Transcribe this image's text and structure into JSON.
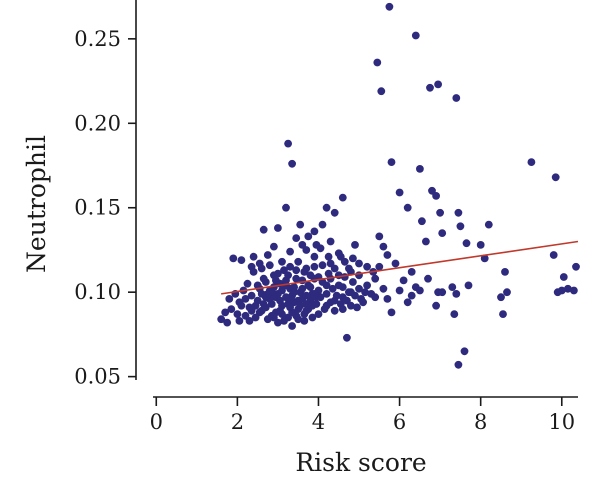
{
  "chart_data": {
    "type": "scatter",
    "title": "",
    "xlabel": "Risk score",
    "ylabel": "Neutrophil",
    "xlim": [
      -0.5,
      10.4
    ],
    "ylim": [
      0.048,
      0.273
    ],
    "x_ticks": [
      0,
      2,
      4,
      6,
      8,
      10
    ],
    "x_tick_labels": [
      "0",
      "2",
      "4",
      "6",
      "8",
      "10"
    ],
    "y_ticks": [
      0.05,
      0.1,
      0.15,
      0.2,
      0.25
    ],
    "y_tick_labels": [
      "0.05",
      "0.10",
      "0.15",
      "0.20",
      "0.25"
    ],
    "grid": false,
    "point_color": "#2e2a7e",
    "trend_color": "#c0392b",
    "trend_line": {
      "x": [
        1.6,
        10.4
      ],
      "y": [
        0.099,
        0.13
      ]
    },
    "points": [
      [
        5.75,
        0.269
      ],
      [
        6.4,
        0.252
      ],
      [
        5.45,
        0.236
      ],
      [
        5.55,
        0.219
      ],
      [
        6.75,
        0.221
      ],
      [
        6.95,
        0.223
      ],
      [
        7.4,
        0.215
      ],
      [
        3.25,
        0.188
      ],
      [
        3.35,
        0.176
      ],
      [
        5.8,
        0.177
      ],
      [
        9.25,
        0.177
      ],
      [
        9.85,
        0.168
      ],
      [
        6.5,
        0.173
      ],
      [
        6.0,
        0.159
      ],
      [
        6.8,
        0.16
      ],
      [
        6.9,
        0.157
      ],
      [
        6.2,
        0.15
      ],
      [
        6.55,
        0.142
      ],
      [
        6.65,
        0.13
      ],
      [
        7.0,
        0.147
      ],
      [
        7.45,
        0.147
      ],
      [
        7.5,
        0.139
      ],
      [
        7.05,
        0.135
      ],
      [
        7.65,
        0.129
      ],
      [
        8.2,
        0.14
      ],
      [
        8.0,
        0.128
      ],
      [
        5.5,
        0.133
      ],
      [
        5.6,
        0.127
      ],
      [
        5.7,
        0.122
      ],
      [
        5.9,
        0.117
      ],
      [
        6.3,
        0.112
      ],
      [
        6.1,
        0.107
      ],
      [
        5.5,
        0.115
      ],
      [
        5.6,
        0.102
      ],
      [
        5.7,
        0.096
      ],
      [
        5.8,
        0.088
      ],
      [
        6.0,
        0.101
      ],
      [
        6.2,
        0.094
      ],
      [
        6.3,
        0.098
      ],
      [
        6.4,
        0.103
      ],
      [
        6.5,
        0.101
      ],
      [
        6.7,
        0.108
      ],
      [
        6.95,
        0.1
      ],
      [
        7.05,
        0.1
      ],
      [
        7.3,
        0.103
      ],
      [
        7.4,
        0.099
      ],
      [
        6.9,
        0.092
      ],
      [
        7.35,
        0.087
      ],
      [
        7.7,
        0.104
      ],
      [
        8.1,
        0.12
      ],
      [
        8.5,
        0.097
      ],
      [
        8.6,
        0.112
      ],
      [
        8.65,
        0.1
      ],
      [
        8.55,
        0.087
      ],
      [
        7.6,
        0.065
      ],
      [
        7.45,
        0.057
      ],
      [
        9.8,
        0.122
      ],
      [
        9.9,
        0.1
      ],
      [
        10.0,
        0.101
      ],
      [
        10.15,
        0.102
      ],
      [
        10.3,
        0.101
      ],
      [
        10.35,
        0.115
      ],
      [
        10.05,
        0.109
      ],
      [
        4.7,
        0.073
      ],
      [
        4.6,
        0.156
      ],
      [
        4.4,
        0.147
      ],
      [
        4.2,
        0.15
      ],
      [
        4.1,
        0.14
      ],
      [
        3.9,
        0.136
      ],
      [
        4.3,
        0.13
      ],
      [
        3.7,
        0.125
      ],
      [
        3.9,
        0.121
      ],
      [
        4.3,
        0.117
      ],
      [
        4.5,
        0.123
      ],
      [
        4.9,
        0.128
      ],
      [
        5.0,
        0.117
      ],
      [
        5.2,
        0.115
      ],
      [
        5.4,
        0.108
      ],
      [
        4.8,
        0.112
      ],
      [
        4.6,
        0.103
      ],
      [
        3.0,
        0.138
      ],
      [
        2.65,
        0.137
      ],
      [
        3.2,
        0.15
      ],
      [
        3.45,
        0.132
      ],
      [
        3.6,
        0.128
      ],
      [
        3.3,
        0.124
      ],
      [
        2.9,
        0.127
      ],
      [
        2.75,
        0.122
      ],
      [
        2.4,
        0.121
      ],
      [
        2.1,
        0.119
      ],
      [
        1.9,
        0.12
      ],
      [
        1.6,
        0.084
      ],
      [
        1.7,
        0.088
      ],
      [
        1.75,
        0.082
      ],
      [
        1.85,
        0.09
      ],
      [
        2.0,
        0.087
      ],
      [
        2.05,
        0.094
      ],
      [
        2.2,
        0.086
      ],
      [
        2.3,
        0.091
      ],
      [
        2.35,
        0.098
      ],
      [
        2.45,
        0.085
      ],
      [
        2.5,
        0.095
      ],
      [
        2.55,
        0.102
      ],
      [
        2.6,
        0.089
      ],
      [
        2.65,
        0.108
      ],
      [
        2.7,
        0.097
      ],
      [
        2.75,
        0.084
      ],
      [
        2.8,
        0.101
      ],
      [
        2.85,
        0.093
      ],
      [
        2.9,
        0.11
      ],
      [
        2.95,
        0.088
      ],
      [
        3.0,
        0.099
      ],
      [
        3.05,
        0.105
      ],
      [
        3.1,
        0.092
      ],
      [
        3.15,
        0.113
      ],
      [
        3.2,
        0.097
      ],
      [
        3.25,
        0.085
      ],
      [
        3.3,
        0.102
      ],
      [
        3.35,
        0.08
      ],
      [
        3.4,
        0.094
      ],
      [
        3.45,
        0.108
      ],
      [
        3.5,
        0.09
      ],
      [
        3.55,
        0.1
      ],
      [
        3.6,
        0.096
      ],
      [
        3.65,
        0.112
      ],
      [
        3.7,
        0.089
      ],
      [
        3.75,
        0.104
      ],
      [
        3.8,
        0.095
      ],
      [
        3.85,
        0.099
      ],
      [
        3.9,
        0.108
      ],
      [
        3.95,
        0.093
      ],
      [
        4.0,
        0.101
      ],
      [
        4.05,
        0.097
      ],
      [
        4.1,
        0.106
      ],
      [
        4.15,
        0.09
      ],
      [
        4.2,
        0.099
      ],
      [
        4.25,
        0.111
      ],
      [
        4.3,
        0.094
      ],
      [
        4.35,
        0.102
      ],
      [
        4.4,
        0.089
      ],
      [
        4.45,
        0.098
      ],
      [
        4.5,
        0.104
      ],
      [
        4.55,
        0.093
      ],
      [
        4.6,
        0.097
      ],
      [
        4.65,
        0.109
      ],
      [
        4.7,
        0.095
      ],
      [
        4.75,
        0.1
      ],
      [
        4.8,
        0.092
      ],
      [
        4.85,
        0.106
      ],
      [
        4.9,
        0.098
      ],
      [
        4.95,
        0.091
      ],
      [
        5.0,
        0.102
      ],
      [
        5.05,
        0.096
      ],
      [
        5.1,
        0.094
      ],
      [
        5.15,
        0.1
      ],
      [
        2.4,
        0.112
      ],
      [
        2.5,
        0.104
      ],
      [
        2.6,
        0.114
      ],
      [
        2.7,
        0.106
      ],
      [
        2.8,
        0.116
      ],
      [
        2.9,
        0.103
      ],
      [
        3.0,
        0.111
      ],
      [
        3.1,
        0.118
      ],
      [
        3.2,
        0.107
      ],
      [
        3.3,
        0.115
      ],
      [
        3.4,
        0.103
      ],
      [
        3.5,
        0.118
      ],
      [
        3.6,
        0.107
      ],
      [
        3.7,
        0.114
      ],
      [
        3.8,
        0.103
      ],
      [
        3.9,
        0.115
      ],
      [
        4.0,
        0.109
      ],
      [
        4.1,
        0.116
      ],
      [
        4.2,
        0.104
      ],
      [
        4.3,
        0.108
      ],
      [
        4.4,
        0.114
      ],
      [
        4.5,
        0.11
      ],
      [
        2.2,
        0.096
      ],
      [
        2.3,
        0.083
      ],
      [
        2.45,
        0.092
      ],
      [
        2.55,
        0.088
      ],
      [
        2.65,
        0.093
      ],
      [
        2.75,
        0.099
      ],
      [
        2.85,
        0.086
      ],
      [
        2.95,
        0.097
      ],
      [
        3.05,
        0.089
      ],
      [
        3.15,
        0.083
      ],
      [
        3.25,
        0.093
      ],
      [
        3.35,
        0.098
      ],
      [
        3.45,
        0.086
      ],
      [
        3.55,
        0.092
      ],
      [
        3.65,
        0.083
      ],
      [
        3.75,
        0.09
      ],
      [
        3.85,
        0.085
      ],
      [
        3.95,
        0.097
      ],
      [
        2.1,
        0.092
      ],
      [
        2.15,
        0.101
      ],
      [
        2.25,
        0.105
      ],
      [
        2.35,
        0.089
      ],
      [
        1.8,
        0.096
      ],
      [
        1.95,
        0.099
      ],
      [
        2.05,
        0.083
      ],
      [
        3.1,
        0.101
      ],
      [
        3.2,
        0.104
      ],
      [
        3.3,
        0.096
      ],
      [
        3.4,
        0.1
      ],
      [
        3.5,
        0.095
      ],
      [
        3.6,
        0.102
      ],
      [
        3.7,
        0.098
      ],
      [
        3.8,
        0.11
      ],
      [
        3.9,
        0.099
      ],
      [
        2.95,
        0.107
      ],
      [
        3.05,
        0.095
      ],
      [
        2.85,
        0.1
      ],
      [
        3.25,
        0.11
      ],
      [
        3.45,
        0.113
      ],
      [
        2.6,
        0.099
      ],
      [
        2.7,
        0.091
      ],
      [
        2.8,
        0.096
      ],
      [
        3.1,
        0.087
      ],
      [
        3.3,
        0.091
      ],
      [
        3.5,
        0.084
      ],
      [
        3.7,
        0.093
      ],
      [
        4.0,
        0.087
      ],
      [
        4.2,
        0.092
      ],
      [
        4.4,
        0.095
      ],
      [
        4.6,
        0.09
      ],
      [
        4.8,
        0.1
      ],
      [
        5.0,
        0.11
      ],
      [
        5.2,
        0.104
      ],
      [
        5.3,
        0.099
      ],
      [
        5.35,
        0.112
      ],
      [
        5.4,
        0.097
      ],
      [
        4.65,
        0.118
      ],
      [
        4.75,
        0.114
      ],
      [
        4.55,
        0.121
      ],
      [
        4.85,
        0.12
      ],
      [
        3.55,
        0.14
      ],
      [
        3.75,
        0.133
      ],
      [
        3.95,
        0.128
      ],
      [
        4.05,
        0.126
      ],
      [
        4.25,
        0.121
      ],
      [
        2.55,
        0.117
      ],
      [
        2.35,
        0.115
      ],
      [
        3.0,
        0.082
      ],
      [
        2.9,
        0.085
      ],
      [
        3.35,
        0.088
      ],
      [
        3.65,
        0.087
      ],
      [
        3.85,
        0.092
      ]
    ]
  }
}
